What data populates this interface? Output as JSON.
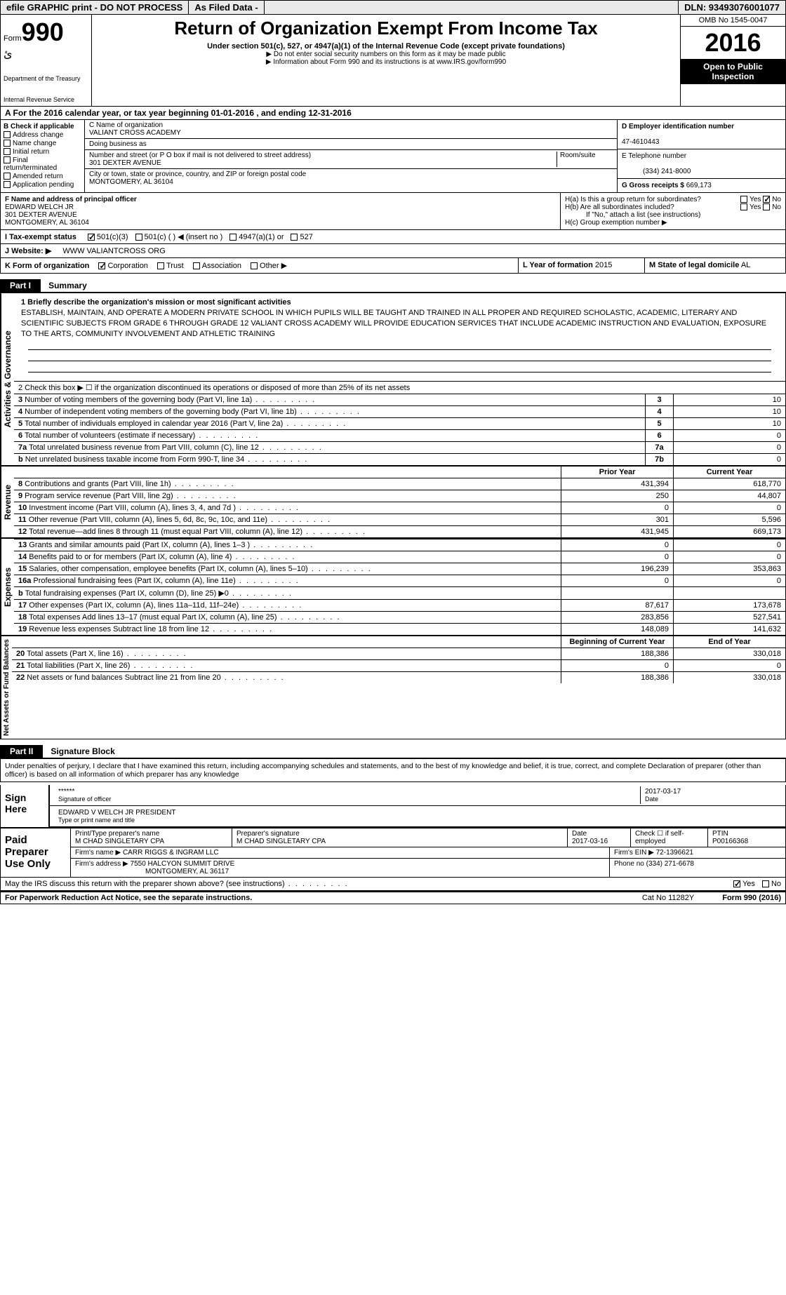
{
  "topbar": {
    "efile": "efile GRAPHIC print - DO NOT PROCESS",
    "asfiled": "As Filed Data -",
    "dln": "DLN: 93493076001077"
  },
  "header": {
    "form": "Form",
    "num": "990",
    "dept1": "Department of the Treasury",
    "dept2": "Internal Revenue Service",
    "title": "Return of Organization Exempt From Income Tax",
    "sub": "Under section 501(c), 527, or 4947(a)(1) of the Internal Revenue Code (except private foundations)",
    "note1": "▶ Do not enter social security numbers on this form as it may be made public",
    "note2": "▶ Information about Form 990 and its instructions is at www.IRS.gov/form990",
    "omb": "OMB No 1545-0047",
    "year": "2016",
    "insp1": "Open to Public",
    "insp2": "Inspection"
  },
  "rowA": "A  For the 2016 calendar year, or tax year beginning 01-01-2016  , and ending 12-31-2016",
  "colB": {
    "title": "B Check if applicable",
    "i1": "Address change",
    "i2": "Name change",
    "i3": "Initial return",
    "i4": "Final return/terminated",
    "i5": "Amended return",
    "i6": "Application pending"
  },
  "colC": {
    "nameLbl": "C Name of organization",
    "name": "VALIANT CROSS ACADEMY",
    "dbaLbl": "Doing business as",
    "addrLbl": "Number and street (or P O  box if mail is not delivered to street address)",
    "roomLbl": "Room/suite",
    "addr": "301 DEXTER AVENUE",
    "cityLbl": "City or town, state or province, country, and ZIP or foreign postal code",
    "city": "MONTGOMERY, AL  36104"
  },
  "colD": {
    "einLbl": "D Employer identification number",
    "ein": "47-4610443",
    "telLbl": "E Telephone number",
    "tel": "(334) 241-8000",
    "grossLbl": "G Gross receipts $",
    "gross": "669,173"
  },
  "f": {
    "lbl": "F  Name and address of principal officer",
    "name": "EDWARD WELCH JR",
    "addr1": "301 DEXTER AVENUE",
    "addr2": "MONTGOMERY, AL  36104"
  },
  "h": {
    "a": "H(a)  Is this a group return for subordinates?",
    "b": "H(b)  Are all subordinates included?",
    "bnote": "If \"No,\" attach a list  (see instructions)",
    "c": "H(c)  Group exemption number ▶",
    "yes": "Yes",
    "no": "No"
  },
  "i": {
    "lbl": "I  Tax-exempt status",
    "o1": "501(c)(3)",
    "o2": "501(c) (  ) ◀ (insert no )",
    "o3": "4947(a)(1) or",
    "o4": "527"
  },
  "j": {
    "lbl": "J  Website: ▶",
    "val": "WWW VALIANTCROSS ORG"
  },
  "k": {
    "lbl": "K Form of organization",
    "o1": "Corporation",
    "o2": "Trust",
    "o3": "Association",
    "o4": "Other ▶"
  },
  "l": {
    "lbl": "L Year of formation",
    "val": "2015"
  },
  "m": {
    "lbl": "M State of legal domicile",
    "val": "AL"
  },
  "part1": {
    "hdr": "Part I",
    "title": "Summary"
  },
  "mission": {
    "lbl": "1  Briefly describe the organization's mission or most significant activities",
    "txt": "ESTABLISH, MAINTAIN, AND OPERATE A MODERN PRIVATE SCHOOL IN WHICH PUPILS WILL BE TAUGHT AND TRAINED IN ALL PROPER AND REQUIRED SCHOLASTIC, ACADEMIC, LITERARY AND SCIENTIFIC SUBJECTS FROM GRADE 6 THROUGH GRADE 12  VALIANT CROSS ACADEMY WILL PROVIDE EDUCATION SERVICES THAT INCLUDE  ACADEMIC INSTRUCTION AND EVALUATION, EXPOSURE TO THE ARTS, COMMUNITY INVOLVEMENT AND ATHLETIC TRAINING"
  },
  "gov": {
    "l2": "2  Check this box ▶ ☐ if the organization discontinued its operations or disposed of more than 25% of its net assets",
    "rows": [
      {
        "n": "3",
        "lbl": "Number of voting members of the governing body (Part VI, line 1a)",
        "c": "3",
        "v": "10"
      },
      {
        "n": "4",
        "lbl": "Number of independent voting members of the governing body (Part VI, line 1b)",
        "c": "4",
        "v": "10"
      },
      {
        "n": "5",
        "lbl": "Total number of individuals employed in calendar year 2016 (Part V, line 2a)",
        "c": "5",
        "v": "10"
      },
      {
        "n": "6",
        "lbl": "Total number of volunteers (estimate if necessary)",
        "c": "6",
        "v": "0"
      },
      {
        "n": "7a",
        "lbl": "Total unrelated business revenue from Part VIII, column (C), line 12",
        "c": "7a",
        "v": "0"
      },
      {
        "n": "b",
        "lbl": "Net unrelated business taxable income from Form 990-T, line 34",
        "c": "7b",
        "v": "0"
      }
    ]
  },
  "revhead": {
    "c1": "Prior Year",
    "c2": "Current Year"
  },
  "revenue": [
    {
      "n": "8",
      "lbl": "Contributions and grants (Part VIII, line 1h)",
      "c1": "431,394",
      "c2": "618,770"
    },
    {
      "n": "9",
      "lbl": "Program service revenue (Part VIII, line 2g)",
      "c1": "250",
      "c2": "44,807"
    },
    {
      "n": "10",
      "lbl": "Investment income (Part VIII, column (A), lines 3, 4, and 7d )",
      "c1": "0",
      "c2": "0"
    },
    {
      "n": "11",
      "lbl": "Other revenue (Part VIII, column (A), lines 5, 6d, 8c, 9c, 10c, and 11e)",
      "c1": "301",
      "c2": "5,596"
    },
    {
      "n": "12",
      "lbl": "Total revenue—add lines 8 through 11 (must equal Part VIII, column (A), line 12)",
      "c1": "431,945",
      "c2": "669,173"
    }
  ],
  "expenses": [
    {
      "n": "13",
      "lbl": "Grants and similar amounts paid (Part IX, column (A), lines 1–3 )",
      "c1": "0",
      "c2": "0"
    },
    {
      "n": "14",
      "lbl": "Benefits paid to or for members (Part IX, column (A), line 4)",
      "c1": "0",
      "c2": "0"
    },
    {
      "n": "15",
      "lbl": "Salaries, other compensation, employee benefits (Part IX, column (A), lines 5–10)",
      "c1": "196,239",
      "c2": "353,863"
    },
    {
      "n": "16a",
      "lbl": "Professional fundraising fees (Part IX, column (A), line 11e)",
      "c1": "0",
      "c2": "0"
    },
    {
      "n": "b",
      "lbl": "Total fundraising expenses (Part IX, column (D), line 25) ▶0",
      "c1": "",
      "c2": ""
    },
    {
      "n": "17",
      "lbl": "Other expenses (Part IX, column (A), lines 11a–11d, 11f–24e)",
      "c1": "87,617",
      "c2": "173,678"
    },
    {
      "n": "18",
      "lbl": "Total expenses  Add lines 13–17 (must equal Part IX, column (A), line 25)",
      "c1": "283,856",
      "c2": "527,541"
    },
    {
      "n": "19",
      "lbl": "Revenue less expenses  Subtract line 18 from line 12",
      "c1": "148,089",
      "c2": "141,632"
    }
  ],
  "nethead": {
    "c1": "Beginning of Current Year",
    "c2": "End of Year"
  },
  "net": [
    {
      "n": "20",
      "lbl": "Total assets (Part X, line 16)",
      "c1": "188,386",
      "c2": "330,018"
    },
    {
      "n": "21",
      "lbl": "Total liabilities (Part X, line 26)",
      "c1": "0",
      "c2": "0"
    },
    {
      "n": "22",
      "lbl": "Net assets or fund balances  Subtract line 21 from line 20",
      "c1": "188,386",
      "c2": "330,018"
    }
  ],
  "sides": {
    "gov": "Activities & Governance",
    "rev": "Revenue",
    "exp": "Expenses",
    "net": "Net Assets or Fund Balances"
  },
  "part2": {
    "hdr": "Part II",
    "title": "Signature Block"
  },
  "sig": {
    "intro": "Under penalties of perjury, I declare that I have examined this return, including accompanying schedules and statements, and to the best of my knowledge and belief, it is true, correct, and complete  Declaration of preparer (other than officer) is based on all information of which preparer has any knowledge",
    "here": "Sign Here",
    "sigoff": "Signature of officer",
    "stars": "******",
    "date": "Date",
    "dateval": "2017-03-17",
    "name": "EDWARD V WELCH JR  PRESIDENT",
    "nameLbl": "Type or print name and title"
  },
  "prep": {
    "left": "Paid Preparer Use Only",
    "h1": "Print/Type preparer's name",
    "v1": "M CHAD SINGLETARY CPA",
    "h2": "Preparer's signature",
    "v2": "M CHAD SINGLETARY CPA",
    "h3": "Date",
    "v3": "2017-03-16",
    "h4": "Check ☐ if self-employed",
    "h5": "PTIN",
    "v5": "P00166368",
    "firm": "Firm's name  ▶",
    "firmv": "CARR RIGGS & INGRAM LLC",
    "ein": "Firm's EIN ▶",
    "einv": "72-1396621",
    "addr": "Firm's address ▶",
    "addrv1": "7550 HALCYON SUMMIT DRIVE",
    "addrv2": "MONTGOMERY, AL  36117",
    "phone": "Phone no",
    "phonev": "(334) 271-6678"
  },
  "may": {
    "txt": "May the IRS discuss this return with the preparer shown above? (see instructions)",
    "yes": "Yes",
    "no": "No"
  },
  "footer": {
    "pra": "For Paperwork Reduction Act Notice, see the separate instructions.",
    "cat": "Cat  No  11282Y",
    "form": "Form 990 (2016)"
  }
}
